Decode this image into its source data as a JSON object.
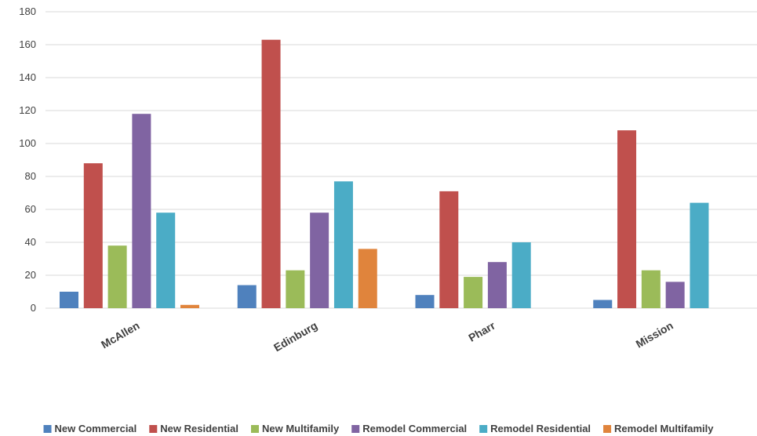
{
  "chart_data": {
    "type": "bar",
    "categories": [
      "McAllen",
      "Edinburg",
      "Pharr",
      "Mission"
    ],
    "series": [
      {
        "name": "New Commercial",
        "values": [
          10,
          14,
          8,
          5
        ],
        "color": "#4f81bd"
      },
      {
        "name": "New Residential",
        "values": [
          88,
          163,
          71,
          108
        ],
        "color": "#c0504d"
      },
      {
        "name": "New Multifamily",
        "values": [
          38,
          23,
          19,
          23
        ],
        "color": "#9bbb59"
      },
      {
        "name": "Remodel Commercial",
        "values": [
          118,
          58,
          28,
          16
        ],
        "color": "#8064a2"
      },
      {
        "name": "Remodel Residential",
        "values": [
          58,
          77,
          40,
          64
        ],
        "color": "#4bacc6"
      },
      {
        "name": "Remodel Multifamily",
        "values": [
          2,
          36,
          0,
          0
        ],
        "color": "#e0843c"
      }
    ],
    "ylim": [
      0,
      180
    ],
    "yticks": [
      0,
      20,
      40,
      60,
      80,
      100,
      120,
      140,
      160,
      180
    ],
    "grid": true,
    "legend_position": "bottom",
    "title": "",
    "xlabel": "",
    "ylabel": ""
  }
}
